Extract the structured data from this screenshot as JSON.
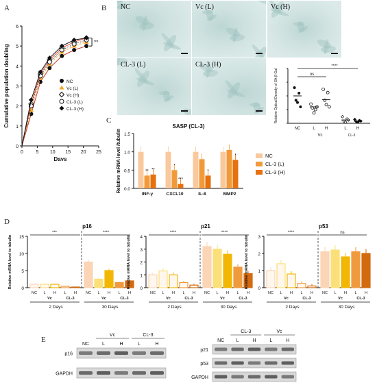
{
  "panel_labels": {
    "a": "A",
    "b": "B",
    "c": "C",
    "d": "D",
    "e": "E"
  },
  "panel_a": {
    "xlabel": "Days",
    "ylabel": "Cumulative population doubling",
    "significance": "**",
    "legend": [
      "NC",
      "Vc (L)",
      "Vc (H)",
      "CL-3 (L)",
      "CL-3 (H)"
    ],
    "colors": [
      "#111111",
      "#f5a623",
      "#111111",
      "#111111",
      "#111111"
    ],
    "chart_data": {
      "type": "line",
      "x": [
        0,
        3,
        6,
        9,
        13,
        17,
        21
      ],
      "xlim": [
        0,
        25
      ],
      "ylim": [
        0,
        6
      ],
      "xticks": [
        0,
        5,
        10,
        15,
        20,
        25
      ],
      "yticks": [
        0,
        1,
        2,
        3,
        4,
        5,
        6
      ],
      "xlabel": "Days",
      "ylabel": "Cumulative population doubling",
      "series": [
        {
          "name": "NC",
          "values": [
            0,
            1.6,
            3.2,
            3.9,
            4.5,
            4.8,
            5.0
          ]
        },
        {
          "name": "Vc (L)",
          "values": [
            0,
            1.8,
            3.4,
            4.1,
            4.7,
            5.0,
            5.2
          ]
        },
        {
          "name": "Vc (H)",
          "values": [
            0,
            2.1,
            3.6,
            4.3,
            4.9,
            5.2,
            5.4
          ]
        },
        {
          "name": "CL-3 (L)",
          "values": [
            0,
            2.0,
            3.5,
            4.2,
            4.8,
            5.1,
            5.3
          ]
        },
        {
          "name": "CL-3 (H)",
          "values": [
            0,
            2.3,
            3.7,
            4.4,
            5.0,
            5.3,
            5.4
          ]
        }
      ]
    }
  },
  "panel_b": {
    "micrographs": [
      "NC",
      "Vc (L)",
      "Vc (H)",
      "CL-3 (L)",
      "CL-3 (H)"
    ],
    "ylabel": "Relative Optical Density of SA-β-Gal",
    "sig_top": "****",
    "sig_ns": "ns",
    "x_labels": [
      "NC",
      "L",
      "H",
      "L",
      "H"
    ],
    "group_labels": [
      "Vc",
      "CL-3"
    ],
    "chart_data": {
      "type": "scatter",
      "categories": [
        "NC",
        "Vc L",
        "Vc H",
        "CL-3 L",
        "CL-3 H"
      ],
      "means": [
        500,
        300,
        430,
        60,
        40
      ],
      "ylim": [
        0,
        1000
      ],
      "points": [
        [
          650,
          420,
          380,
          550,
          300
        ],
        [
          350,
          280,
          190,
          250,
          300
        ],
        [
          620,
          420,
          340,
          560,
          300
        ],
        [
          120,
          40,
          20,
          80,
          60
        ],
        [
          70,
          30,
          20,
          50,
          40
        ]
      ]
    }
  },
  "panel_c": {
    "title": "SASP (CL-3)",
    "ylabel": "Relative mRNA level /tubulin",
    "legend": [
      "NC",
      "CL-3 (L)",
      "CL-3 (H)"
    ],
    "colors": [
      "#f9c99d",
      "#f29a3a",
      "#e6710e"
    ],
    "chart_data": {
      "type": "bar",
      "categories": [
        "INF-γ",
        "CXCL10",
        "IL-8",
        "MMP2"
      ],
      "ylim": [
        0,
        1.5
      ],
      "yticks": [
        0.0,
        0.5,
        1.0,
        1.5
      ],
      "series": [
        {
          "name": "NC",
          "values": [
            1.0,
            1.0,
            1.0,
            1.0
          ]
        },
        {
          "name": "CL-3 (L)",
          "values": [
            0.35,
            0.5,
            0.8,
            1.05
          ]
        },
        {
          "name": "CL-3 (H)",
          "values": [
            0.38,
            0.12,
            0.35,
            0.78
          ]
        }
      ],
      "stars": [
        [
          "",
          "**",
          "**"
        ],
        [
          "",
          "*",
          "***"
        ],
        [
          "",
          "",
          "*"
        ],
        [
          "",
          "",
          "*"
        ]
      ]
    }
  },
  "panel_d": {
    "ylabel": "Relative mRNA level to tubulin",
    "time_labels": [
      "2 Days",
      "30 Days"
    ],
    "x_labels": [
      "NC",
      "L",
      "H",
      "L",
      "H"
    ],
    "group_labels": [
      "Vc",
      "CL-3"
    ],
    "colors": [
      "#fbd5b5",
      "#fbe07a",
      "#f2b705",
      "#f09a3e",
      "#d36a10"
    ],
    "charts": [
      {
        "gene": "p16",
        "ylim": [
          0,
          15
        ],
        "yticks": [
          0,
          5,
          10,
          15
        ],
        "sig_left": "***",
        "sig_right": "****",
        "values": [
          1.0,
          1.0,
          1.0,
          0.4,
          0.2,
          7.5,
          2.5,
          5.0,
          1.5,
          2.0
        ]
      },
      {
        "gene": "p21",
        "ylim": [
          0,
          4
        ],
        "yticks": [
          0,
          1,
          2,
          3,
          4
        ],
        "sig_left": "****",
        "sig_right": "****",
        "values": [
          1.0,
          1.3,
          1.0,
          0.4,
          0.2,
          3.2,
          3.0,
          2.6,
          1.6,
          1.1
        ]
      },
      {
        "gene": "p53",
        "ylim": [
          0,
          3
        ],
        "yticks": [
          0,
          1,
          2,
          3
        ],
        "sig_left": "****",
        "sig_right": "ns",
        "values": [
          1.0,
          1.4,
          0.8,
          0.25,
          0.1,
          2.1,
          2.2,
          1.8,
          2.1,
          2.0
        ]
      }
    ]
  },
  "panel_e": {
    "left": {
      "groups": [
        "Vc",
        "CL-3"
      ],
      "lanes": [
        "NC",
        "L",
        "H",
        "L",
        "H"
      ],
      "rows": [
        "p16",
        "GAPDH"
      ]
    },
    "right": {
      "groups": [
        "CL-3",
        "Vc"
      ],
      "lanes": [
        "NC",
        "L",
        "H",
        "L",
        "H"
      ],
      "rows": [
        "p21",
        "p53",
        "GAPDH"
      ]
    }
  }
}
